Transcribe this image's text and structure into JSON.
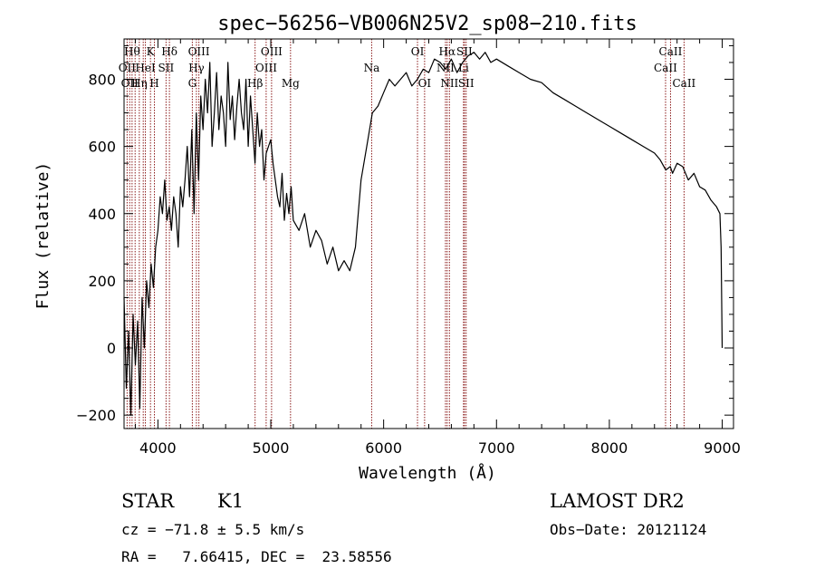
{
  "chart_data": {
    "type": "line",
    "title": "spec−56256−VB006N25V2_sp08−210.fits",
    "xlabel": "Wavelength (Å)",
    "ylabel": "Flux (relative)",
    "xlim": [
      3700,
      9100
    ],
    "ylim": [
      -240,
      920
    ],
    "xticks": [
      4000,
      5000,
      6000,
      7000,
      8000,
      9000
    ],
    "yticks": [
      -200,
      0,
      200,
      400,
      600,
      800
    ],
    "grid": false,
    "line_color": "#000000",
    "marker_color": "#8b1a1a",
    "series": [
      {
        "x": [
          3700,
          3720,
          3740,
          3760,
          3780,
          3800,
          3820,
          3840,
          3860,
          3880,
          3900,
          3920,
          3940,
          3960,
          3980,
          4000,
          4020,
          4040,
          4060,
          4080,
          4100,
          4120,
          4140,
          4160,
          4180,
          4200,
          4220,
          4240,
          4260,
          4280,
          4300,
          4320,
          4340,
          4360,
          4380,
          4400,
          4420,
          4440,
          4460,
          4480,
          4500,
          4520,
          4540,
          4560,
          4580,
          4600,
          4620,
          4640,
          4660,
          4680,
          4700,
          4720,
          4740,
          4760,
          4780,
          4800,
          4820,
          4840,
          4860,
          4880,
          4900,
          4920,
          4940,
          4960,
          4980,
          5000,
          5020,
          5040,
          5060,
          5080,
          5100,
          5120,
          5140,
          5160,
          5180,
          5200,
          5250,
          5300,
          5350,
          5400,
          5450,
          5500,
          5550,
          5600,
          5650,
          5700,
          5750,
          5800,
          5850,
          5900,
          5950,
          6000,
          6050,
          6100,
          6150,
          6200,
          6250,
          6300,
          6350,
          6400,
          6450,
          6500,
          6550,
          6600,
          6650,
          6700,
          6750,
          6800,
          6850,
          6900,
          6950,
          7000,
          7100,
          7200,
          7300,
          7400,
          7500,
          7600,
          7700,
          7800,
          7900,
          8000,
          8100,
          8200,
          8300,
          8400,
          8450,
          8500,
          8540,
          8560,
          8600,
          8650,
          8700,
          8750,
          8800,
          8850,
          8900,
          8950,
          8980,
          8990,
          9000
        ],
        "y": [
          150,
          -120,
          50,
          -200,
          100,
          -50,
          80,
          -180,
          150,
          0,
          200,
          120,
          250,
          180,
          300,
          350,
          450,
          400,
          500,
          380,
          420,
          350,
          450,
          400,
          300,
          480,
          420,
          500,
          600,
          450,
          650,
          400,
          700,
          500,
          750,
          650,
          800,
          700,
          850,
          600,
          700,
          820,
          650,
          750,
          700,
          600,
          850,
          680,
          750,
          620,
          720,
          800,
          700,
          650,
          800,
          600,
          750,
          650,
          550,
          700,
          600,
          650,
          500,
          580,
          600,
          620,
          550,
          500,
          450,
          420,
          520,
          380,
          460,
          400,
          480,
          380,
          350,
          400,
          300,
          350,
          320,
          250,
          300,
          230,
          260,
          230,
          300,
          500,
          600,
          700,
          720,
          760,
          800,
          780,
          800,
          820,
          780,
          800,
          830,
          820,
          860,
          850,
          830,
          860,
          820,
          850,
          870,
          880,
          860,
          880,
          850,
          860,
          840,
          820,
          800,
          790,
          760,
          740,
          720,
          700,
          680,
          660,
          640,
          620,
          600,
          580,
          560,
          530,
          540,
          520,
          550,
          540,
          500,
          520,
          480,
          470,
          440,
          420,
          400,
          300,
          0
        ]
      }
    ],
    "line_markers": [
      {
        "wavelength": 3727,
        "label": "OII",
        "row": 2
      },
      {
        "wavelength": 3750,
        "label": "OII",
        "row": 3
      },
      {
        "wavelength": 3771,
        "label": "Hθ",
        "row": 1
      },
      {
        "wavelength": 3798,
        "label": "",
        "row": 0
      },
      {
        "wavelength": 3835,
        "label": "Hη",
        "row": 3
      },
      {
        "wavelength": 3870,
        "label": "",
        "row": 0
      },
      {
        "wavelength": 3889,
        "label": "HeI",
        "row": 2
      },
      {
        "wavelength": 3934,
        "label": "K",
        "row": 1
      },
      {
        "wavelength": 3969,
        "label": "H",
        "row": 3
      },
      {
        "wavelength": 4072,
        "label": "SII",
        "row": 2
      },
      {
        "wavelength": 4102,
        "label": "Hδ",
        "row": 1
      },
      {
        "wavelength": 4305,
        "label": "G",
        "row": 3
      },
      {
        "wavelength": 4341,
        "label": "Hγ",
        "row": 2
      },
      {
        "wavelength": 4363,
        "label": "OIII",
        "row": 1
      },
      {
        "wavelength": 4861,
        "label": "Hβ",
        "row": 3
      },
      {
        "wavelength": 4959,
        "label": "OIII",
        "row": 2
      },
      {
        "wavelength": 5007,
        "label": "OIII",
        "row": 1
      },
      {
        "wavelength": 5175,
        "label": "Mg",
        "row": 3
      },
      {
        "wavelength": 5894,
        "label": "Na",
        "row": 2
      },
      {
        "wavelength": 6300,
        "label": "OI",
        "row": 1
      },
      {
        "wavelength": 6363,
        "label": "OI",
        "row": 3
      },
      {
        "wavelength": 6548,
        "label": "NII",
        "row": 2
      },
      {
        "wavelength": 6563,
        "label": "Hα",
        "row": 1
      },
      {
        "wavelength": 6583,
        "label": "NII",
        "row": 3
      },
      {
        "wavelength": 6708,
        "label": "Li",
        "row": 2
      },
      {
        "wavelength": 6716,
        "label": "SII",
        "row": 1
      },
      {
        "wavelength": 6731,
        "label": "SII",
        "row": 3
      },
      {
        "wavelength": 8498,
        "label": "CaII",
        "row": 2
      },
      {
        "wavelength": 8542,
        "label": "CaII",
        "row": 1
      },
      {
        "wavelength": 8662,
        "label": "CaII",
        "row": 3
      }
    ]
  },
  "info": {
    "object_class": "STAR",
    "subclass": "K1",
    "survey": "LAMOST DR2",
    "cz": "cz = −71.8 ± 5.5 km/s",
    "obs_date": "Obs−Date: 20121124",
    "coords": "RA =   7.66415, DEC =  23.58556"
  }
}
